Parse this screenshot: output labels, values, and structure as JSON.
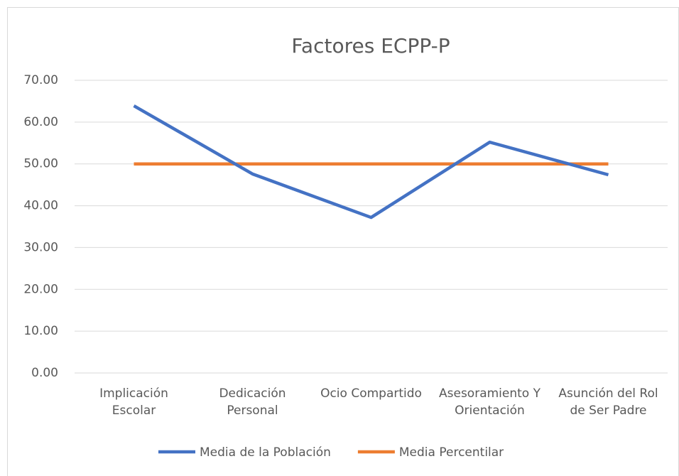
{
  "chart_data": {
    "type": "line",
    "title": "Factores ECPP-P",
    "categories": [
      "Implicación Escolar",
      "Dedicación Personal",
      "Ocio Compartido",
      "Asesoramiento Y Orientación",
      "Asunción del Rol de Ser Padre"
    ],
    "series": [
      {
        "name": "Media de la Población",
        "color": "#4472c4",
        "values": [
          63.9,
          47.6,
          37.2,
          55.2,
          47.4
        ]
      },
      {
        "name": "Media Percentilar",
        "color": "#ed7d31",
        "values": [
          50,
          50,
          50,
          50,
          50
        ]
      }
    ],
    "ylim": [
      0,
      70
    ],
    "yticks": [
      {
        "value": 0,
        "label": "0.00"
      },
      {
        "value": 10,
        "label": "10.00"
      },
      {
        "value": 20,
        "label": "20.00"
      },
      {
        "value": 30,
        "label": "30.00"
      },
      {
        "value": 40,
        "label": "40.00"
      },
      {
        "value": 50,
        "label": "50.00"
      },
      {
        "value": 60,
        "label": "60.00"
      },
      {
        "value": 70,
        "label": "70.00"
      }
    ],
    "grid": true,
    "legend": "bottom"
  }
}
